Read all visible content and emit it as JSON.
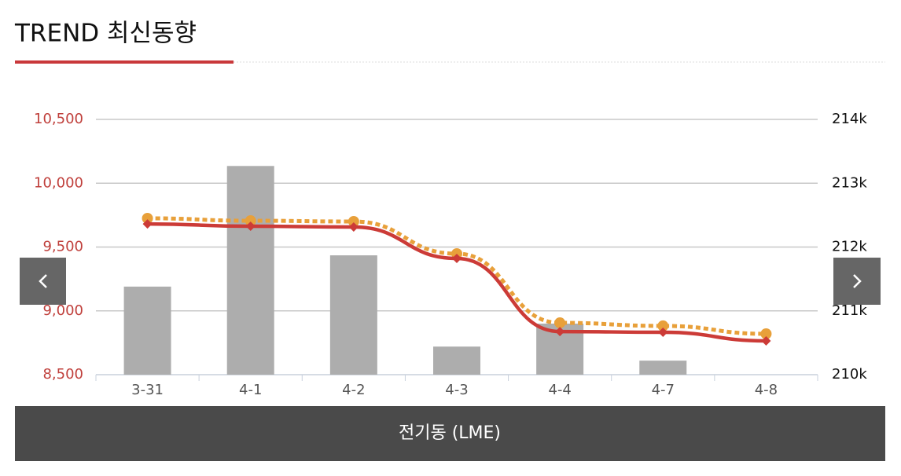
{
  "header": {
    "title": "TREND 최신동향"
  },
  "chart_data": {
    "type": "combo",
    "categories": [
      "3-31",
      "4-1",
      "4-2",
      "4-3",
      "4-4",
      "4-7",
      "4-8"
    ],
    "series": [
      {
        "type": "bar",
        "axis": "y2",
        "color": "#adadad",
        "values": [
          211380,
          213270,
          211870,
          210440,
          210800,
          210220,
          null
        ]
      },
      {
        "type": "line",
        "color": "#e8a03a",
        "dash": true,
        "marker": "circle",
        "values": [
          9725,
          9706,
          9700,
          9448,
          8906,
          8882,
          8820
        ]
      },
      {
        "type": "line",
        "color": "#cc3b37",
        "dash": false,
        "marker": "diamond",
        "values": [
          9681,
          9663,
          9657,
          9411,
          8838,
          8832,
          8765
        ]
      }
    ],
    "ylim": [
      8500,
      10500
    ],
    "yticks": [
      {
        "value": 8500,
        "label": "8,500"
      },
      {
        "value": 9000,
        "label": "9,000"
      },
      {
        "value": 9500,
        "label": "9,500"
      },
      {
        "value": 10000,
        "label": "10,000"
      },
      {
        "value": 10500,
        "label": "10,500"
      }
    ],
    "y2lim": [
      210000,
      214000
    ],
    "y2ticks": [
      {
        "value": 210000,
        "label": "210k"
      },
      {
        "value": 211000,
        "label": "211k"
      },
      {
        "value": 212000,
        "label": "212k"
      },
      {
        "value": 213000,
        "label": "213k"
      },
      {
        "value": 214000,
        "label": "214k"
      }
    ],
    "grid": true
  },
  "footer": {
    "label": "전기동 (LME)"
  }
}
